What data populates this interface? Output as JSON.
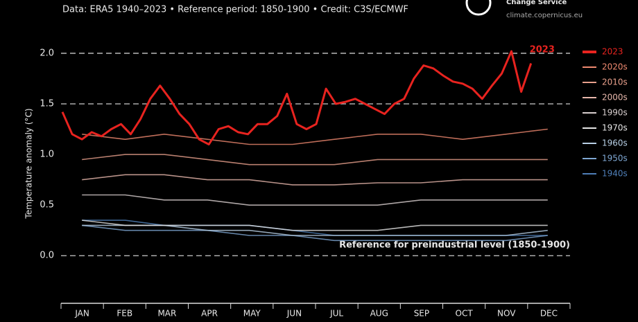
{
  "chart_data": {
    "type": "line",
    "header": "Data: ERA5 1940–2023 • Reference period: 1850-1900 • Credit: C3S/ECMWF",
    "logo_text": "Change Service",
    "logo_url": "climate.copernicus.eu",
    "y_label": "Temperature anomaly (°C)",
    "annotation": "Reference for preindustrial level (1850-1900)",
    "categories": [
      "JAN",
      "FEB",
      "MAR",
      "APR",
      "MAY",
      "JUN",
      "JUL",
      "AUG",
      "SEP",
      "OCT",
      "NOV",
      "DEC"
    ],
    "xlim": [
      0,
      365
    ],
    "ylim": [
      -0.45,
      2.15
    ],
    "yticks": [
      {
        "value": 0,
        "label": "0.0"
      },
      0.5,
      {
        "value": 1,
        "label": "1.0"
      },
      1.5,
      {
        "value": 2,
        "label": "2.0"
      }
    ],
    "dashed_levels": [
      0,
      1.5,
      2
    ],
    "series": [
      {
        "name": "2023",
        "color": "#e8231f",
        "x": [
          1,
          8,
          15,
          22,
          29,
          36,
          43,
          50,
          57,
          64,
          71,
          78,
          85,
          92,
          99,
          106,
          113,
          120,
          127,
          134,
          141,
          148,
          155,
          162,
          169,
          176,
          183,
          190,
          197,
          204,
          211,
          218,
          225,
          232,
          239,
          246,
          253,
          260,
          267,
          274,
          281,
          288,
          295,
          302,
          309,
          316,
          323,
          330,
          337
        ],
        "values": [
          1.42,
          1.2,
          1.15,
          1.22,
          1.18,
          1.25,
          1.3,
          1.2,
          1.35,
          1.55,
          1.68,
          1.55,
          1.4,
          1.3,
          1.15,
          1.1,
          1.25,
          1.28,
          1.22,
          1.2,
          1.3,
          1.3,
          1.38,
          1.6,
          1.3,
          1.25,
          1.3,
          1.65,
          1.5,
          1.52,
          1.55,
          1.5,
          1.45,
          1.4,
          1.5,
          1.55,
          1.75,
          1.88,
          1.85,
          1.78,
          1.72,
          1.7,
          1.65,
          1.55,
          1.68,
          1.8,
          2.02,
          1.62,
          1.9
        ]
      },
      {
        "name": "2020s",
        "color": "#f08a70",
        "x": [
          15,
          46,
          74,
          105,
          135,
          166,
          196,
          227,
          258,
          288,
          319,
          349
        ],
        "values": [
          1.2,
          1.15,
          1.2,
          1.15,
          1.1,
          1.1,
          1.15,
          1.2,
          1.2,
          1.15,
          1.2,
          1.25
        ]
      },
      {
        "name": "2010s",
        "color": "#e9a08c",
        "x": [
          15,
          46,
          74,
          105,
          135,
          166,
          196,
          227,
          258,
          288,
          319,
          349
        ],
        "values": [
          0.95,
          1.0,
          1.0,
          0.95,
          0.9,
          0.9,
          0.9,
          0.95,
          0.95,
          0.95,
          0.95,
          0.95
        ]
      },
      {
        "name": "2000s",
        "color": "#e8b8ac",
        "x": [
          15,
          46,
          74,
          105,
          135,
          166,
          196,
          227,
          258,
          288,
          319,
          349
        ],
        "values": [
          0.75,
          0.8,
          0.8,
          0.75,
          0.75,
          0.7,
          0.7,
          0.72,
          0.72,
          0.75,
          0.75,
          0.75
        ]
      },
      {
        "name": "1990s",
        "color": "#d9d0d0",
        "x": [
          15,
          46,
          74,
          105,
          135,
          166,
          196,
          227,
          258,
          288,
          319,
          349
        ],
        "values": [
          0.6,
          0.6,
          0.55,
          0.55,
          0.5,
          0.5,
          0.5,
          0.5,
          0.55,
          0.55,
          0.55,
          0.55
        ]
      },
      {
        "name": "1970s",
        "color": "#e6e6e6",
        "x": [
          15,
          46,
          74,
          105,
          135,
          166,
          196,
          227,
          258,
          288,
          319,
          349
        ],
        "values": [
          0.35,
          0.3,
          0.3,
          0.3,
          0.3,
          0.25,
          0.25,
          0.25,
          0.3,
          0.3,
          0.3,
          0.3
        ]
      },
      {
        "name": "1960s",
        "color": "#b8d0e6",
        "x": [
          15,
          46,
          74,
          105,
          135,
          166,
          196,
          227,
          258,
          288,
          319,
          349
        ],
        "values": [
          0.3,
          0.3,
          0.3,
          0.25,
          0.25,
          0.2,
          0.2,
          0.2,
          0.2,
          0.2,
          0.2,
          0.25
        ]
      },
      {
        "name": "1950s",
        "color": "#7fa8d4",
        "x": [
          15,
          46,
          74,
          105,
          135,
          166,
          196,
          227,
          258,
          288,
          319,
          349
        ],
        "values": [
          0.3,
          0.25,
          0.25,
          0.25,
          0.2,
          0.2,
          0.15,
          0.15,
          0.15,
          0.15,
          0.15,
          0.2
        ]
      },
      {
        "name": "1940s",
        "color": "#4f7fb8",
        "x": [
          15,
          46,
          74,
          105,
          135,
          166,
          196,
          227,
          258,
          288,
          319,
          349
        ],
        "values": [
          0.35,
          0.35,
          0.3,
          0.3,
          0.3,
          0.25,
          0.2,
          0.2,
          0.2,
          0.2,
          0.2,
          0.2
        ]
      }
    ]
  }
}
